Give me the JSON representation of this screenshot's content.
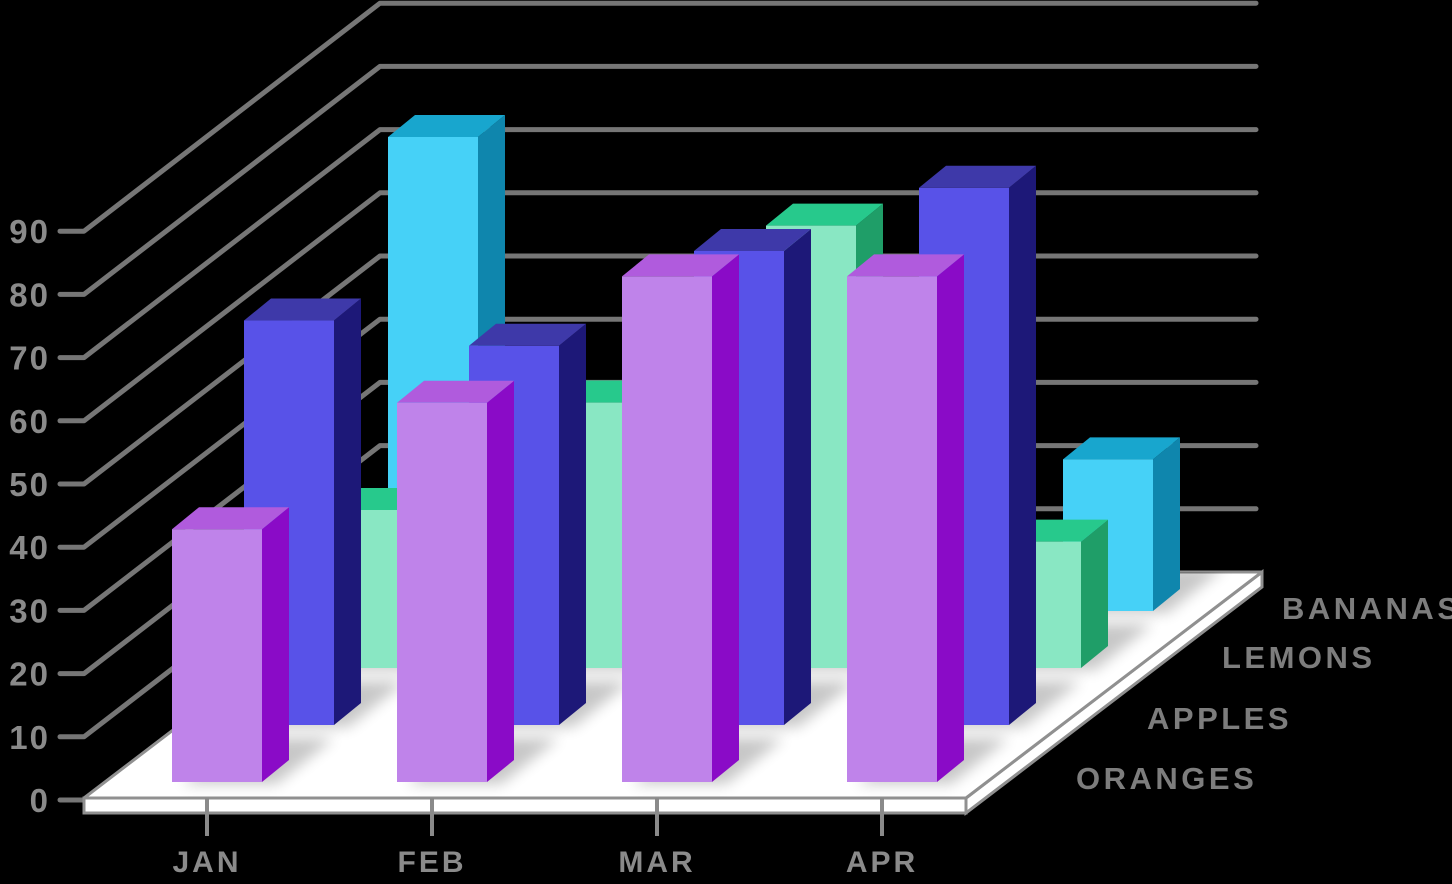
{
  "background_color": "#000000",
  "chart_data": {
    "type": "bar",
    "subtype": "3d-column-depth-rows",
    "title": "",
    "categories": [
      "JAN",
      "FEB",
      "MAR",
      "APR"
    ],
    "series": [
      {
        "name": "ORANGES",
        "depth_row": 0,
        "values": [
          40,
          60,
          80,
          80
        ],
        "color_front": "#bf83ea",
        "color_top": "#b05bdd",
        "color_side": "#8a0bc7"
      },
      {
        "name": "APPLES",
        "depth_row": 1,
        "values": [
          64,
          60,
          75,
          85
        ],
        "color_front": "#5852e8",
        "color_top": "#3e39a9",
        "color_side": "#1d1878"
      },
      {
        "name": "LEMONS",
        "depth_row": 2,
        "values": [
          25,
          42,
          70,
          20
        ],
        "color_front": "#89e7c3",
        "color_top": "#27c98c",
        "color_side": "#1f9e68"
      },
      {
        "name": "BANANAS",
        "depth_row": 3,
        "values": [
          75,
          null,
          null,
          24
        ],
        "color_front": "#46d1f7",
        "color_top": "#18a6ce",
        "color_side": "#0f86ad"
      }
    ],
    "y_axis": {
      "min": 0,
      "max": 90,
      "step": 10,
      "tick_labels": [
        "0",
        "10",
        "20",
        "30",
        "40",
        "50",
        "60",
        "70",
        "80",
        "90"
      ]
    },
    "xlabel": "",
    "ylabel": "",
    "legend_position": "depth-axis-right",
    "grid": true,
    "colors": {
      "gridline": "#767676",
      "tick_label": "#8a8a8a",
      "month_label": "#8a8a8a",
      "series_label": "#7d7d7d",
      "floor": "#ffffff",
      "floor_edge": "#909090",
      "shadow": "#000000"
    }
  }
}
